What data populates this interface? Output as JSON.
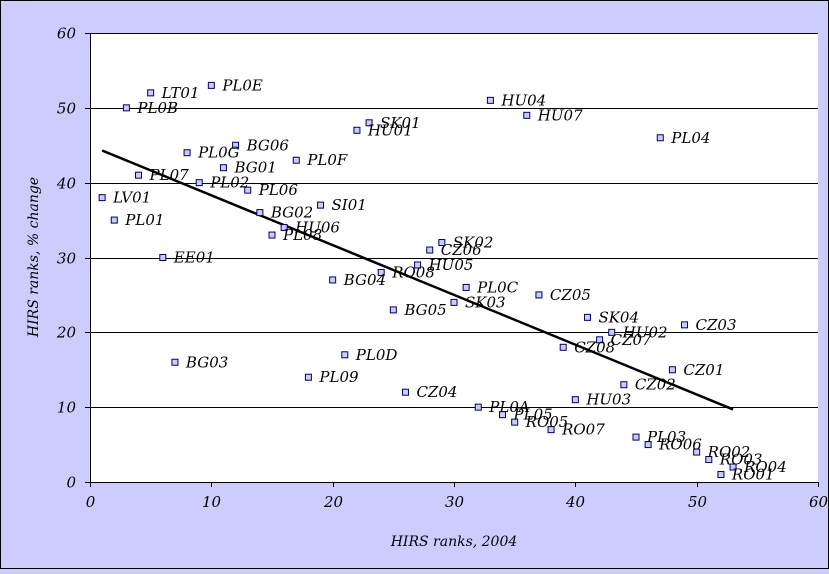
{
  "chart_data": {
    "type": "scatter",
    "title": "",
    "xlabel": "HIRS ranks, 2004",
    "ylabel": "HIRS ranks, % change",
    "xlim": [
      0,
      60
    ],
    "ylim": [
      0,
      60
    ],
    "xticks": [
      0,
      10,
      20,
      30,
      40,
      50,
      60
    ],
    "yticks": [
      0,
      10,
      20,
      30,
      40,
      50,
      60
    ],
    "grid": "horizontal major",
    "legend": "none",
    "colors": {
      "background": "#ccccff",
      "plot_area": "#ffffff",
      "marker_fill": "#ccccff",
      "marker_stroke": "#000066",
      "line": "#000000"
    },
    "trendline": {
      "x": [
        1,
        53
      ],
      "y": [
        44.3,
        9.7
      ]
    },
    "points": [
      {
        "label": "PL0E",
        "x": 10,
        "y": 53
      },
      {
        "label": "LT01",
        "x": 5,
        "y": 52
      },
      {
        "label": "PL0B",
        "x": 3,
        "y": 50
      },
      {
        "label": "HU04",
        "x": 33,
        "y": 51
      },
      {
        "label": "HU07",
        "x": 36,
        "y": 49
      },
      {
        "label": "SK01",
        "x": 23,
        "y": 48
      },
      {
        "label": "HU01",
        "x": 22,
        "y": 47
      },
      {
        "label": "PL04",
        "x": 47,
        "y": 46
      },
      {
        "label": "BG06",
        "x": 12,
        "y": 45
      },
      {
        "label": "PL0G",
        "x": 8,
        "y": 44
      },
      {
        "label": "PL0F",
        "x": 17,
        "y": 43
      },
      {
        "label": "BG01",
        "x": 11,
        "y": 42
      },
      {
        "label": "PL07",
        "x": 4,
        "y": 41
      },
      {
        "label": "PL02",
        "x": 9,
        "y": 40
      },
      {
        "label": "PL06",
        "x": 13,
        "y": 39
      },
      {
        "label": "LV01",
        "x": 1,
        "y": 38
      },
      {
        "label": "SI01",
        "x": 19,
        "y": 37
      },
      {
        "label": "BG02",
        "x": 14,
        "y": 36
      },
      {
        "label": "PL01",
        "x": 2,
        "y": 35
      },
      {
        "label": "HU06",
        "x": 16,
        "y": 34
      },
      {
        "label": "PL08",
        "x": 15,
        "y": 33
      },
      {
        "label": "SK02",
        "x": 29,
        "y": 32
      },
      {
        "label": "CZ06",
        "x": 28,
        "y": 31
      },
      {
        "label": "EE01",
        "x": 6,
        "y": 30
      },
      {
        "label": "HU05",
        "x": 27,
        "y": 29
      },
      {
        "label": "RO08",
        "x": 24,
        "y": 28
      },
      {
        "label": "BG04",
        "x": 20,
        "y": 27
      },
      {
        "label": "PL0C",
        "x": 31,
        "y": 26
      },
      {
        "label": "CZ05",
        "x": 37,
        "y": 25
      },
      {
        "label": "SK03",
        "x": 30,
        "y": 24
      },
      {
        "label": "BG05",
        "x": 25,
        "y": 23
      },
      {
        "label": "SK04",
        "x": 41,
        "y": 22
      },
      {
        "label": "CZ03",
        "x": 49,
        "y": 21
      },
      {
        "label": "HU02",
        "x": 43,
        "y": 20
      },
      {
        "label": "CZ07",
        "x": 42,
        "y": 19
      },
      {
        "label": "CZ08",
        "x": 39,
        "y": 18
      },
      {
        "label": "PL0D",
        "x": 21,
        "y": 17
      },
      {
        "label": "BG03",
        "x": 7,
        "y": 16
      },
      {
        "label": "CZ01",
        "x": 48,
        "y": 15
      },
      {
        "label": "PL09",
        "x": 18,
        "y": 14
      },
      {
        "label": "CZ02",
        "x": 44,
        "y": 13
      },
      {
        "label": "CZ04",
        "x": 26,
        "y": 12
      },
      {
        "label": "HU03",
        "x": 40,
        "y": 11
      },
      {
        "label": "PL0A",
        "x": 32,
        "y": 10
      },
      {
        "label": "PL05",
        "x": 34,
        "y": 9
      },
      {
        "label": "RO05",
        "x": 35,
        "y": 8
      },
      {
        "label": "RO07",
        "x": 38,
        "y": 7
      },
      {
        "label": "PL03",
        "x": 45,
        "y": 6
      },
      {
        "label": "RO06",
        "x": 46,
        "y": 5
      },
      {
        "label": "RO02",
        "x": 50,
        "y": 4
      },
      {
        "label": "RO03",
        "x": 51,
        "y": 3
      },
      {
        "label": "RO04",
        "x": 53,
        "y": 2
      },
      {
        "label": "RO01",
        "x": 52,
        "y": 1
      }
    ]
  }
}
